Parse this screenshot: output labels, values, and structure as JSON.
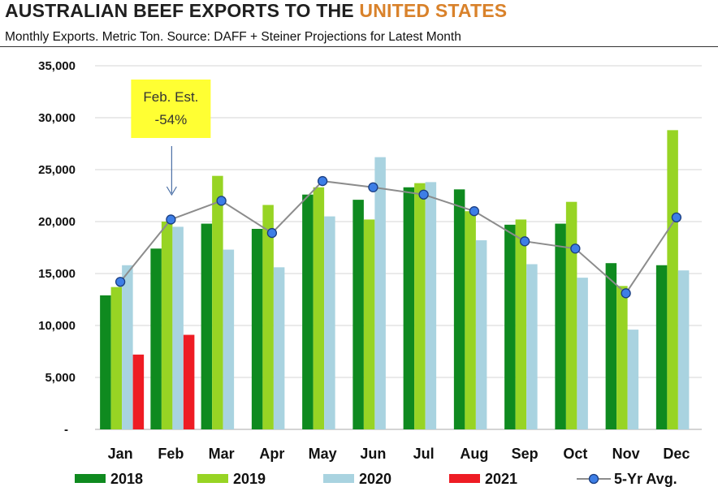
{
  "header": {
    "title_part1": "AUSTRALIAN BEEF EXPORTS TO THE ",
    "title_part2": "UNITED STATES",
    "subtitle": "Monthly Exports.  Metric Ton.  Source: DAFF + Steiner Projections for Latest Month"
  },
  "chart_data": {
    "type": "bar",
    "categories": [
      "Jan",
      "Feb",
      "Mar",
      "Apr",
      "May",
      "Jun",
      "Jul",
      "Aug",
      "Sep",
      "Oct",
      "Nov",
      "Dec"
    ],
    "series": [
      {
        "name": "2018",
        "type": "bar",
        "color": "#0f8a1f",
        "values": [
          12900,
          17400,
          19800,
          19300,
          22600,
          22100,
          23300,
          23100,
          19700,
          19800,
          16000,
          15800
        ]
      },
      {
        "name": "2019",
        "type": "bar",
        "color": "#97d424",
        "values": [
          13700,
          20000,
          24400,
          21600,
          23300,
          20200,
          23700,
          21000,
          20200,
          21900,
          13800,
          28800
        ]
      },
      {
        "name": "2020",
        "type": "bar",
        "color": "#a9d3e0",
        "values": [
          15800,
          19500,
          17300,
          15600,
          20500,
          26200,
          23800,
          18200,
          15900,
          14600,
          9600,
          15300
        ]
      },
      {
        "name": "2021",
        "type": "bar",
        "color": "#ee1c24",
        "values": [
          7200,
          9100,
          null,
          null,
          null,
          null,
          null,
          null,
          null,
          null,
          null,
          null
        ]
      },
      {
        "name": "5-Yr Avg.",
        "type": "line",
        "color": "#3d7ee6",
        "line_color": "#8c8c8c",
        "values": [
          14200,
          20200,
          22000,
          18900,
          23900,
          23300,
          22600,
          21000,
          18100,
          17400,
          13100,
          20400
        ]
      }
    ],
    "ylim": [
      0,
      35000
    ],
    "y_ticks": [
      {
        "value": 35000,
        "label": "35,000"
      },
      {
        "value": 30000,
        "label": "30,000"
      },
      {
        "value": 25000,
        "label": "25,000"
      },
      {
        "value": 20000,
        "label": "20,000"
      },
      {
        "value": 15000,
        "label": "15,000"
      },
      {
        "value": 10000,
        "label": "10,000"
      },
      {
        "value": 5000,
        "label": "5,000"
      },
      {
        "value": 0,
        "label": "-"
      }
    ],
    "grid": true,
    "legend_position": "bottom",
    "annotation": {
      "line1": "Feb. Est.",
      "line2": "-54%",
      "month": "Feb",
      "bg": "#ffff33"
    }
  }
}
